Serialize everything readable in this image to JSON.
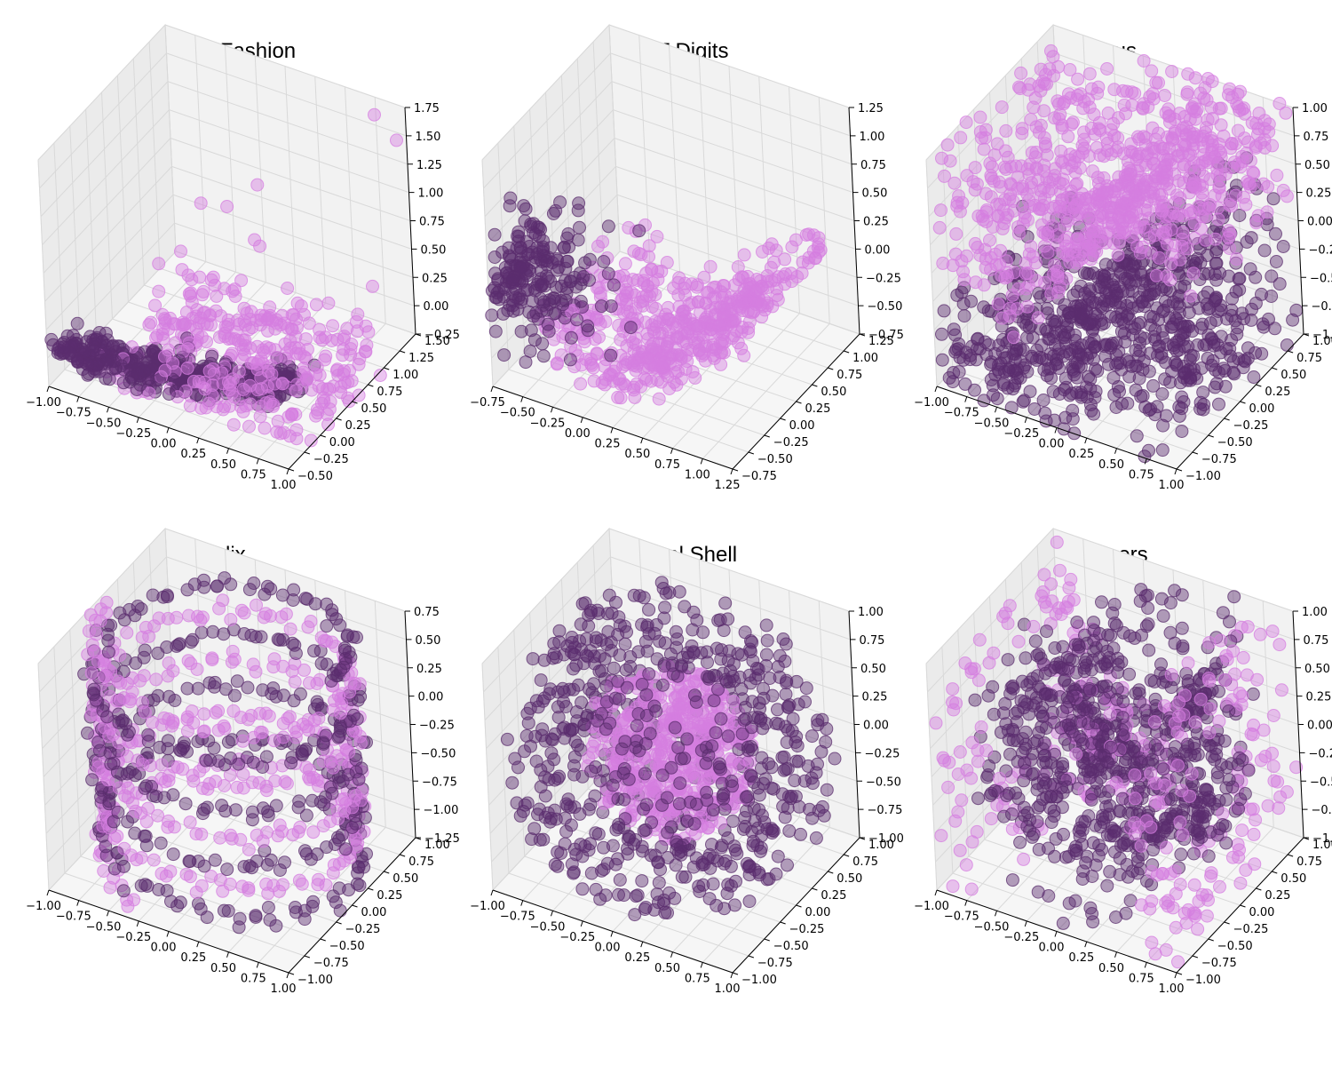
{
  "colors": {
    "class_a": "#5b2d6e",
    "class_b": "#d57ee0",
    "pane_back": "#f2f2f2",
    "pane_side": "#ebebeb",
    "pane_floor": "#f6f6f6",
    "grid": "#d9d9d9"
  },
  "chart_data": [
    {
      "type": "scatter",
      "title": "MNIST Fashion",
      "generator": "fashion",
      "xlim": [
        -1.0,
        1.0
      ],
      "ylim": [
        -0.5,
        1.5
      ],
      "zlim": [
        -0.25,
        1.75
      ],
      "xticks": [
        "−1.00",
        "−0.75",
        "−0.50",
        "−0.25",
        "0.00",
        "0.25",
        "0.50",
        "0.75",
        "1.00"
      ],
      "yticks": [
        "−0.50",
        "−0.25",
        "0.00",
        "0.25",
        "0.50",
        "0.75",
        "1.00",
        "1.25",
        "1.50"
      ],
      "zticks": [
        "−0.25",
        "0.00",
        "0.25",
        "0.50",
        "0.75",
        "1.00",
        "1.25",
        "1.50",
        "1.75"
      ],
      "series": [
        {
          "class": "class_a",
          "color": "#5b2d6e",
          "n": 420
        },
        {
          "class": "class_b",
          "color": "#d57ee0",
          "n": 380
        }
      ]
    },
    {
      "type": "scatter",
      "title": "MNIST Digits",
      "generator": "digits",
      "xlim": [
        -0.75,
        1.25
      ],
      "ylim": [
        -0.75,
        1.25
      ],
      "zlim": [
        -0.75,
        1.25
      ],
      "xticks": [
        "−0.75",
        "−0.50",
        "−0.25",
        "0.00",
        "0.25",
        "0.50",
        "0.75",
        "1.00",
        "1.25"
      ],
      "yticks": [
        "−0.75",
        "−0.50",
        "−0.25",
        "0.00",
        "0.25",
        "0.50",
        "0.75",
        "1.00",
        "1.25"
      ],
      "zticks": [
        "−0.75",
        "−0.50",
        "−0.25",
        "0.00",
        "0.25",
        "0.50",
        "0.75",
        "1.00",
        "1.25"
      ],
      "series": [
        {
          "class": "class_a",
          "color": "#5b2d6e",
          "n": 260
        },
        {
          "class": "class_b",
          "color": "#d57ee0",
          "n": 520
        }
      ]
    },
    {
      "type": "scatter",
      "title": "Sinus",
      "generator": "sinus",
      "xlim": [
        -1.0,
        1.0
      ],
      "ylim": [
        -1.0,
        1.0
      ],
      "zlim": [
        -1.0,
        1.0
      ],
      "xticks": [
        "−1.00",
        "−0.75",
        "−0.50",
        "−0.25",
        "0.00",
        "0.25",
        "0.50",
        "0.75",
        "1.00"
      ],
      "yticks": [
        "−1.00",
        "−0.75",
        "−0.50",
        "−0.25",
        "0.00",
        "0.25",
        "0.50",
        "0.75",
        "1.00"
      ],
      "zticks": [
        "−1.00",
        "−0.75",
        "−0.50",
        "−0.25",
        "0.00",
        "0.25",
        "0.50",
        "0.75",
        "1.00"
      ],
      "series": [
        {
          "class": "class_a",
          "color": "#5b2d6e",
          "n": 800
        },
        {
          "class": "class_b",
          "color": "#d57ee0",
          "n": 800
        }
      ]
    },
    {
      "type": "scatter",
      "title": "Helix",
      "generator": "helix",
      "xlim": [
        -1.0,
        1.0
      ],
      "ylim": [
        -1.0,
        1.0
      ],
      "zlim": [
        -1.35,
        0.8
      ],
      "xticks": [
        "−1.00",
        "−0.75",
        "−0.50",
        "−0.25",
        "0.00",
        "0.25",
        "0.50",
        "0.75",
        "1.00"
      ],
      "yticks": [
        "−1.00",
        "−0.75",
        "−0.50",
        "−0.25",
        "0.00",
        "0.25",
        "0.50",
        "0.75",
        "1.00"
      ],
      "zticks": [
        "−1.25",
        "−1.00",
        "−0.75",
        "−0.50",
        "−0.25",
        "0.00",
        "0.25",
        "0.50",
        "0.75"
      ],
      "series": [
        {
          "class": "class_a",
          "color": "#5b2d6e",
          "n": 420
        },
        {
          "class": "class_b",
          "color": "#d57ee0",
          "n": 420
        }
      ]
    },
    {
      "type": "scatter",
      "title": "Spherical Shell",
      "generator": "shell",
      "xlim": [
        -1.0,
        1.0
      ],
      "ylim": [
        -1.0,
        1.0
      ],
      "zlim": [
        -1.0,
        1.0
      ],
      "xticks": [
        "−1.00",
        "−0.75",
        "−0.50",
        "−0.25",
        "0.00",
        "0.25",
        "0.50",
        "0.75",
        "1.00"
      ],
      "yticks": [
        "−1.00",
        "−0.75",
        "−0.50",
        "−0.25",
        "0.00",
        "0.25",
        "0.50",
        "0.75",
        "1.00"
      ],
      "zticks": [
        "−1.00",
        "−0.75",
        "−0.50",
        "−0.25",
        "0.00",
        "0.25",
        "0.50",
        "0.75",
        "1.00"
      ],
      "series": [
        {
          "class": "class_a",
          "color": "#5b2d6e",
          "n": 700
        },
        {
          "class": "class_b",
          "color": "#d57ee0",
          "n": 500
        }
      ]
    },
    {
      "type": "scatter",
      "title": "Corners",
      "generator": "corners",
      "xlim": [
        -1.0,
        1.0
      ],
      "ylim": [
        -1.0,
        1.0
      ],
      "zlim": [
        -1.0,
        1.0
      ],
      "xticks": [
        "−1.00",
        "−0.75",
        "−0.50",
        "−0.25",
        "0.00",
        "0.25",
        "0.50",
        "0.75",
        "1.00"
      ],
      "yticks": [
        "−1.00",
        "−0.75",
        "−0.50",
        "−0.25",
        "0.00",
        "0.25",
        "0.50",
        "0.75",
        "1.00"
      ],
      "zticks": [
        "−1.00",
        "−0.75",
        "−0.50",
        "−0.25",
        "0.00",
        "0.25",
        "0.50",
        "0.75",
        "1.00"
      ],
      "series": [
        {
          "class": "class_a",
          "color": "#5b2d6e",
          "n": 800
        },
        {
          "class": "class_b",
          "color": "#d57ee0",
          "n": 800
        }
      ]
    }
  ]
}
